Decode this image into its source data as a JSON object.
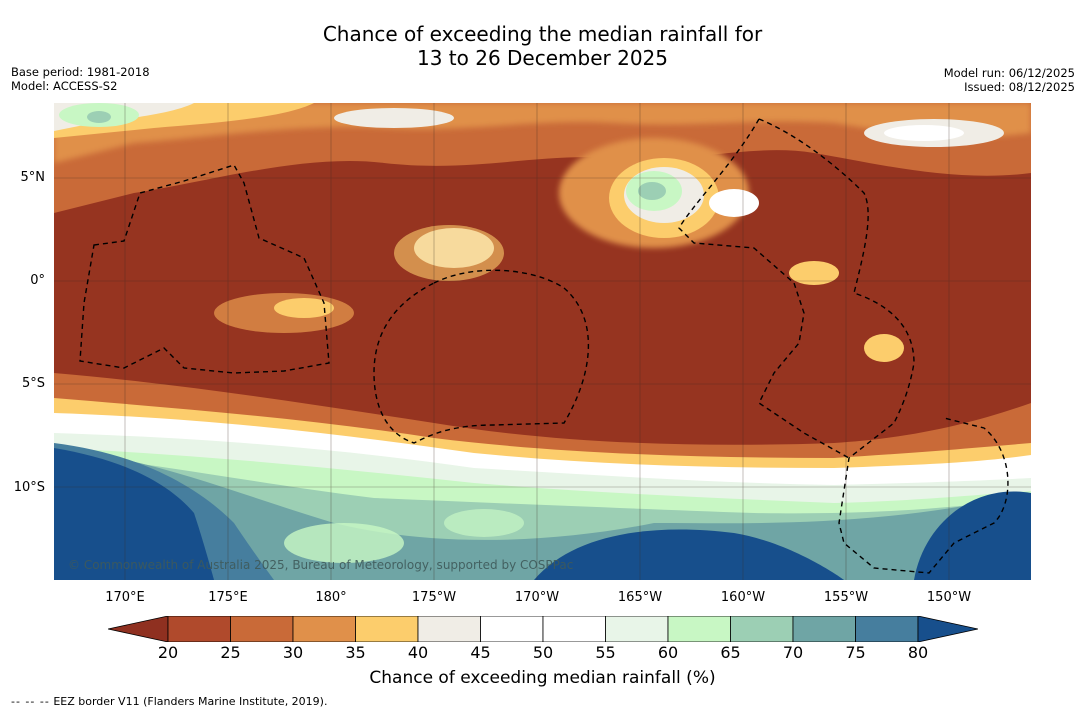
{
  "header": {
    "title_line1": "Chance of exceeding the median rainfall for",
    "title_line2": "13 to 26 December 2025"
  },
  "meta_left": {
    "base_period": "Base period: 1981-2018",
    "model": "Model: ACCESS-S2"
  },
  "meta_right": {
    "model_run": "Model run: 06/12/2025",
    "issued": "Issued: 08/12/2025"
  },
  "map": {
    "copyright": "© Commonwealth of Australia 2025, Bureau of Meteorology, supported by COSPPac",
    "lat_labels": [
      "5°N",
      "0°",
      "5°S",
      "10°S"
    ],
    "lon_labels": [
      "170°E",
      "175°E",
      "180°",
      "175°W",
      "170°W",
      "165°W",
      "160°W",
      "155°W",
      "150°W"
    ]
  },
  "legend": {
    "ticks": [
      "20",
      "25",
      "30",
      "35",
      "40",
      "45",
      "50",
      "55",
      "60",
      "65",
      "70",
      "75",
      "80"
    ],
    "label": "Chance of exceeding median rainfall (%)",
    "colors": [
      "#8f3020",
      "#b04a2c",
      "#c96a38",
      "#e0904a",
      "#fccd6c",
      "#f0ede6",
      "#ffffff",
      "#ffffff",
      "#e8f5e8",
      "#c8f7c4",
      "#9ccfb4",
      "#6fa5a5",
      "#467e9e",
      "#174f8c"
    ]
  },
  "footnote": {
    "dashes": "-- -- --",
    "text": "EEZ border V11 (Flanders Marine Institute, 2019)."
  }
}
